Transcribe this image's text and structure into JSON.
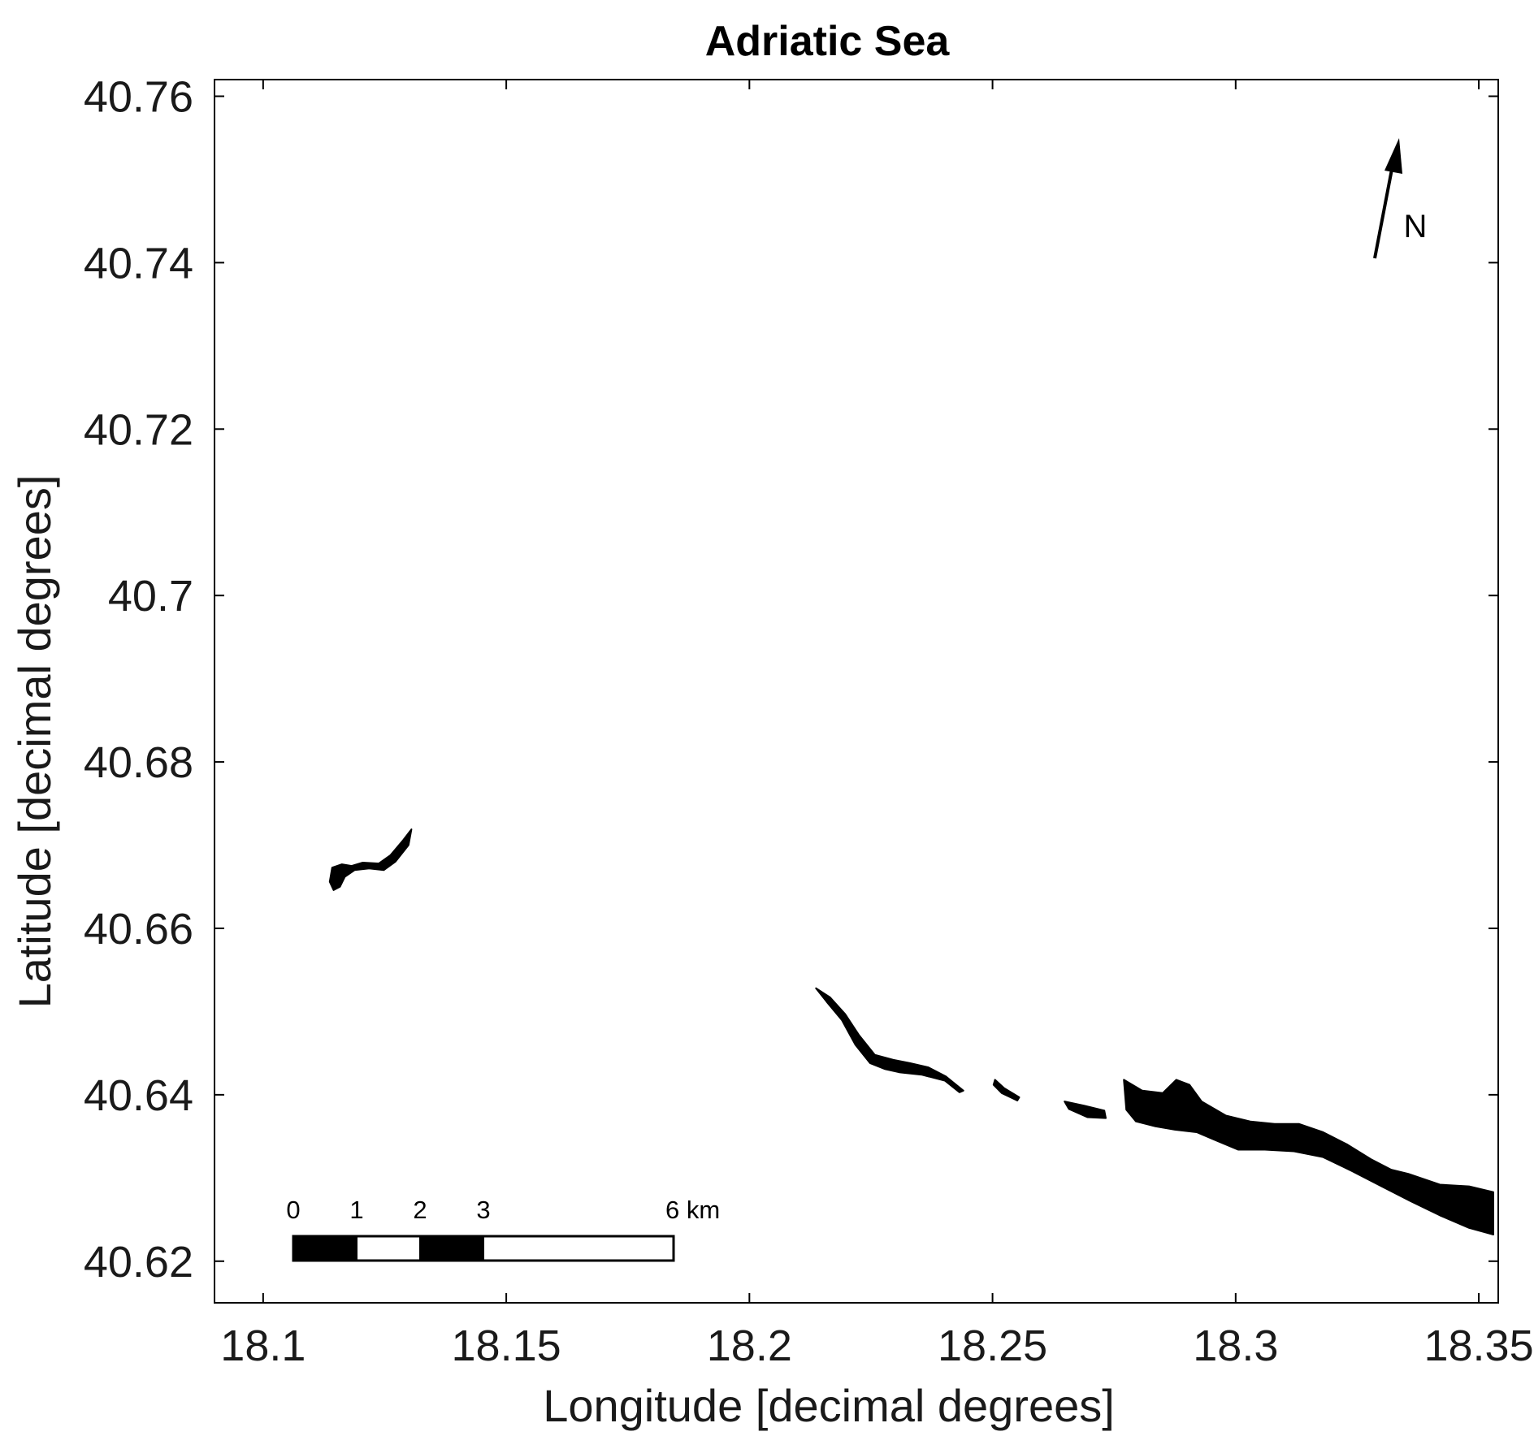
{
  "title": "Adriatic Sea",
  "x_axis": {
    "label": "Longitude [decimal degrees]",
    "range": [
      18.09,
      18.354
    ],
    "ticks": [
      18.1,
      18.15,
      18.2,
      18.25,
      18.3,
      18.35
    ],
    "tick_labels": [
      "18.1",
      "18.15",
      "18.2",
      "18.25",
      "18.3",
      "18.35"
    ]
  },
  "y_axis": {
    "label": "Latitude [decimal degrees]",
    "range": [
      40.615,
      40.762
    ],
    "ticks": [
      40.62,
      40.64,
      40.66,
      40.68,
      40.7,
      40.72,
      40.74,
      40.76
    ],
    "tick_labels": [
      "40.62",
      "40.64",
      "40.66",
      "40.68",
      "40.7",
      "40.72",
      "40.74",
      "40.76"
    ]
  },
  "north_arrow": {
    "label": "N"
  },
  "scale_bar": {
    "labels": [
      "0",
      "1",
      "2",
      "3",
      "6 km"
    ],
    "segments_km": [
      [
        0,
        1,
        "black"
      ],
      [
        1,
        2,
        "white"
      ],
      [
        2,
        3,
        "black"
      ],
      [
        3,
        6,
        "white"
      ]
    ]
  },
  "features": [
    {
      "name": "west-slick",
      "color": "#000000",
      "outline": [
        [
          18.1142,
          40.6673
        ],
        [
          18.1162,
          40.6677
        ],
        [
          18.1182,
          40.6675
        ],
        [
          18.1205,
          40.6679
        ],
        [
          18.1238,
          40.6678
        ],
        [
          18.1262,
          40.6688
        ],
        [
          18.1288,
          40.6706
        ],
        [
          18.1305,
          40.6719
        ],
        [
          18.1299,
          40.67
        ],
        [
          18.1272,
          40.668
        ],
        [
          18.1248,
          40.667
        ],
        [
          18.1218,
          40.6672
        ],
        [
          18.1188,
          40.667
        ],
        [
          18.1168,
          40.6662
        ],
        [
          18.1158,
          40.665
        ],
        [
          18.1145,
          40.6646
        ],
        [
          18.1137,
          40.6656
        ]
      ]
    },
    {
      "name": "central-slick",
      "color": "#000000",
      "outline": [
        [
          18.2137,
          40.6528
        ],
        [
          18.2166,
          40.6517
        ],
        [
          18.2197,
          40.6497
        ],
        [
          18.2225,
          40.6472
        ],
        [
          18.2258,
          40.6448
        ],
        [
          18.2296,
          40.6442
        ],
        [
          18.233,
          40.6438
        ],
        [
          18.2368,
          40.6433
        ],
        [
          18.2404,
          40.6422
        ],
        [
          18.244,
          40.6405
        ],
        [
          18.2432,
          40.6403
        ],
        [
          18.2402,
          40.6417
        ],
        [
          18.2355,
          40.6424
        ],
        [
          18.2308,
          40.6427
        ],
        [
          18.2278,
          40.6431
        ],
        [
          18.2248,
          40.6438
        ],
        [
          18.2218,
          40.646
        ],
        [
          18.219,
          40.649
        ],
        [
          18.216,
          40.6511
        ]
      ]
    },
    {
      "name": "fragment-a",
      "color": "#000000",
      "outline": [
        [
          18.2505,
          40.6418
        ],
        [
          18.2524,
          40.6408
        ],
        [
          18.2555,
          40.6397
        ],
        [
          18.2551,
          40.6393
        ],
        [
          18.2519,
          40.6402
        ],
        [
          18.2502,
          40.6412
        ]
      ]
    },
    {
      "name": "fragment-b",
      "color": "#000000",
      "outline": [
        [
          18.2648,
          40.6392
        ],
        [
          18.2688,
          40.6387
        ],
        [
          18.273,
          40.6381
        ],
        [
          18.2733,
          40.6372
        ],
        [
          18.2695,
          40.6373
        ],
        [
          18.2657,
          40.6383
        ]
      ]
    },
    {
      "name": "east-slick",
      "color": "#000000",
      "outline": [
        [
          18.277,
          40.6418
        ],
        [
          18.2808,
          40.6405
        ],
        [
          18.285,
          40.6402
        ],
        [
          18.2878,
          40.6418
        ],
        [
          18.2905,
          40.6412
        ],
        [
          18.293,
          40.6392
        ],
        [
          18.298,
          40.6375
        ],
        [
          18.303,
          40.6368
        ],
        [
          18.308,
          40.6365
        ],
        [
          18.313,
          40.6365
        ],
        [
          18.318,
          40.6355
        ],
        [
          18.323,
          40.634
        ],
        [
          18.328,
          40.6322
        ],
        [
          18.332,
          40.631
        ],
        [
          18.3355,
          40.6305
        ],
        [
          18.342,
          40.6292
        ],
        [
          18.348,
          40.629
        ],
        [
          18.353,
          40.6283
        ],
        [
          18.353,
          40.6232
        ],
        [
          18.348,
          40.624
        ],
        [
          18.342,
          40.6255
        ],
        [
          18.336,
          40.6272
        ],
        [
          18.33,
          40.629
        ],
        [
          18.324,
          40.6308
        ],
        [
          18.318,
          40.6325
        ],
        [
          18.312,
          40.6332
        ],
        [
          18.306,
          40.6334
        ],
        [
          18.3005,
          40.6334
        ],
        [
          18.296,
          40.6345
        ],
        [
          18.292,
          40.6355
        ],
        [
          18.2875,
          40.6358
        ],
        [
          18.2835,
          40.6362
        ],
        [
          18.2795,
          40.6368
        ],
        [
          18.2775,
          40.6382
        ]
      ]
    }
  ]
}
